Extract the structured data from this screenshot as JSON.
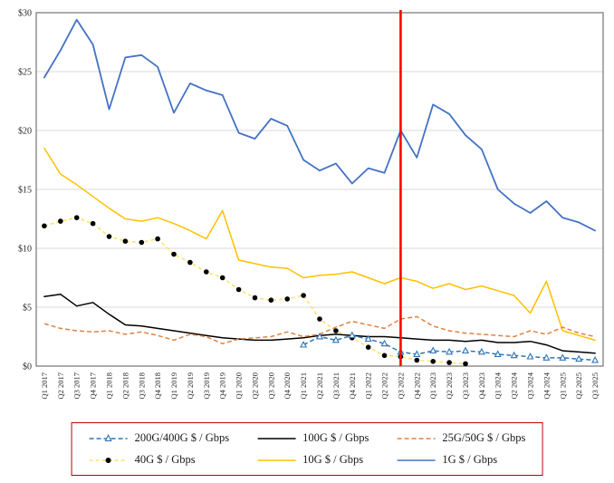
{
  "chart_data": {
    "type": "line",
    "title": "",
    "xlabel": "",
    "ylabel": "",
    "ylim": [
      0,
      30
    ],
    "yticks": [
      0,
      5,
      10,
      15,
      20,
      25,
      30
    ],
    "ytick_labels": [
      "$0",
      "$5",
      "$10",
      "$15",
      "$20",
      "$25",
      "$30"
    ],
    "grid": "horizontal",
    "legend_position": "bottom",
    "legend_border_color": "#C00000",
    "vline": {
      "at": "Q3 2022",
      "color": "#FF0000"
    },
    "categories": [
      "Q1 2017",
      "Q2 2017",
      "Q3 2017",
      "Q4 2017",
      "Q1 2018",
      "Q2 2018",
      "Q3 2018",
      "Q4 2018",
      "Q1 2019",
      "Q2 2019",
      "Q3 2019",
      "Q4 2019",
      "Q1 2020",
      "Q2 2020",
      "Q3 2020",
      "Q4 2020",
      "Q1 2021",
      "Q2 2021",
      "Q3 2021",
      "Q4 2021",
      "Q1 2022",
      "Q2 2022",
      "Q3 2022",
      "Q4 2022",
      "Q1 2023",
      "Q2 2023",
      "Q3 2023",
      "Q4 2023",
      "Q1 2024",
      "Q2 2024",
      "Q3 2024",
      "Q4 2024",
      "Q1 2025",
      "Q2 2025",
      "Q3 2025"
    ],
    "series": [
      {
        "id": "200g-400g",
        "name": "200G/400G $ / Gbps",
        "color": "#2E75B6",
        "dash": "5 3",
        "marker": "triangle",
        "values": [
          null,
          null,
          null,
          null,
          null,
          null,
          null,
          null,
          null,
          null,
          null,
          null,
          null,
          null,
          null,
          null,
          1.8,
          2.5,
          2.2,
          2.6,
          2.3,
          1.9,
          1.2,
          1.0,
          1.3,
          1.2,
          1.3,
          1.2,
          1.0,
          0.9,
          0.8,
          0.7,
          0.7,
          0.6,
          0.5
        ]
      },
      {
        "id": "100g",
        "name": "100G $ / Gbps",
        "color": "#000000",
        "dash": null,
        "marker": null,
        "values": [
          5.9,
          6.1,
          5.1,
          5.4,
          4.4,
          3.5,
          3.4,
          3.2,
          3.0,
          2.8,
          2.6,
          2.4,
          2.3,
          2.2,
          2.2,
          2.3,
          2.4,
          2.6,
          2.7,
          2.6,
          2.5,
          2.5,
          2.4,
          2.3,
          2.2,
          2.2,
          2.1,
          2.2,
          2.0,
          2.0,
          2.1,
          1.8,
          1.3,
          1.2,
          1.1
        ]
      },
      {
        "id": "25g-50g",
        "name": "25G/50G $ / Gbps",
        "color": "#DE8344",
        "dash": "5 3",
        "marker": null,
        "values": [
          3.6,
          3.2,
          3.0,
          2.9,
          3.0,
          2.7,
          2.9,
          2.6,
          2.2,
          2.7,
          2.5,
          1.9,
          2.3,
          2.4,
          2.5,
          2.9,
          2.5,
          2.7,
          3.3,
          3.8,
          3.5,
          3.2,
          4.0,
          4.2,
          3.4,
          3.0,
          2.8,
          2.7,
          2.6,
          2.5,
          3.0,
          2.7,
          3.3,
          2.8,
          2.5
        ]
      },
      {
        "id": "40g",
        "name": "40G $ / Gbps",
        "color": "#FFE066",
        "dash": "4 3",
        "marker": "dot",
        "marker_color": "#000000",
        "values": [
          11.9,
          12.3,
          12.6,
          12.1,
          11.0,
          10.6,
          10.5,
          10.8,
          9.5,
          8.8,
          8.0,
          7.5,
          6.5,
          5.8,
          5.6,
          5.7,
          6.0,
          4.0,
          3.0,
          2.4,
          1.6,
          0.9,
          0.8,
          0.5,
          0.4,
          0.3,
          0.2,
          null,
          null,
          null,
          null,
          null,
          null,
          null,
          null
        ]
      },
      {
        "id": "10g",
        "name": "10G $ / Gbps",
        "color": "#FFC000",
        "dash": null,
        "marker": null,
        "values": [
          18.5,
          16.3,
          15.4,
          14.4,
          13.4,
          12.5,
          12.3,
          12.6,
          12.1,
          11.5,
          10.8,
          13.2,
          9.0,
          8.7,
          8.4,
          8.3,
          7.5,
          7.7,
          7.8,
          8.0,
          7.5,
          7.0,
          7.5,
          7.2,
          6.6,
          7.0,
          6.5,
          6.8,
          6.4,
          6.0,
          4.5,
          7.2,
          3.0,
          2.6,
          2.2
        ]
      },
      {
        "id": "1g",
        "name": "1G $ / Gbps",
        "color": "#4472C4",
        "dash": null,
        "marker": null,
        "values": [
          24.5,
          26.8,
          29.4,
          27.3,
          21.8,
          26.2,
          26.4,
          25.4,
          21.5,
          24.0,
          23.4,
          23.0,
          19.8,
          19.3,
          21.0,
          20.4,
          17.5,
          16.6,
          17.2,
          15.5,
          16.8,
          16.4,
          20.0,
          17.7,
          22.2,
          21.4,
          19.6,
          18.4,
          15.0,
          13.8,
          13.0,
          14.0,
          12.6,
          12.2,
          11.5
        ]
      }
    ]
  }
}
